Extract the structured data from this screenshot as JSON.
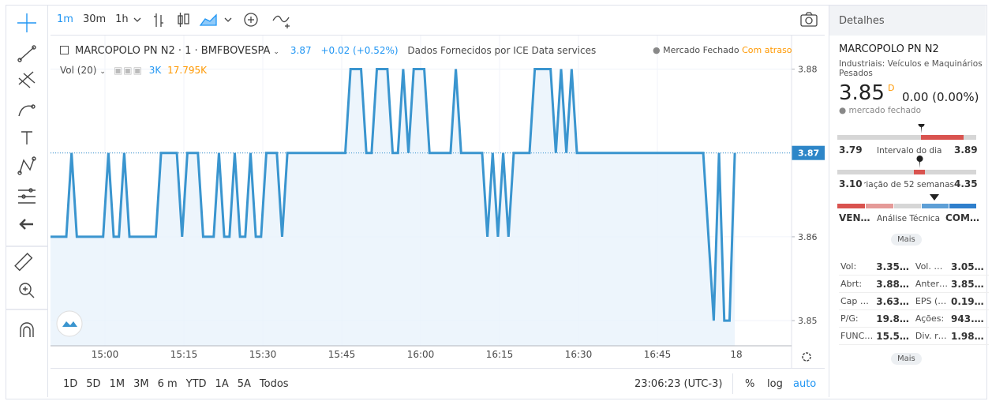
{
  "toolbar": {
    "intervals": [
      "1m",
      "30m",
      "1h"
    ]
  },
  "legend": {
    "symbol": "MARCOPOLO PN N2 · 1 · BMFBOVESPA",
    "price": "3.87",
    "change": "+0.02 (+0.52%)",
    "source": "Dados Fornecidos por ICE Data services",
    "status": "Mercado Fechado",
    "delay": "Com atraso",
    "volume_label": "Vol (20)",
    "volume_value": "3K",
    "volume_average": "17.795K"
  },
  "chart": {
    "type": "line",
    "color": "#3a95cf",
    "values": [
      3.86,
      3.86,
      3.86,
      3.86,
      3.87,
      3.86,
      3.86,
      3.86,
      3.86,
      3.86,
      3.86,
      3.87,
      3.86,
      3.86,
      3.87,
      3.86,
      3.86,
      3.86,
      3.86,
      3.86,
      3.86,
      3.87,
      3.87,
      3.87,
      3.87,
      3.86,
      3.87,
      3.87,
      3.87,
      3.86,
      3.86,
      3.86,
      3.87,
      3.86,
      3.86,
      3.87,
      3.86,
      3.86,
      3.87,
      3.86,
      3.86,
      3.87,
      3.87,
      3.87,
      3.86,
      3.87,
      3.87,
      3.87,
      3.87,
      3.87,
      3.87,
      3.87,
      3.87,
      3.87,
      3.87,
      3.87,
      3.87,
      3.88,
      3.88,
      3.88,
      3.87,
      3.87,
      3.88,
      3.88,
      3.88,
      3.87,
      3.87,
      3.88,
      3.87,
      3.88,
      3.88,
      3.88,
      3.87,
      3.87,
      3.87,
      3.87,
      3.87,
      3.88,
      3.87,
      3.87,
      3.87,
      3.87,
      3.87,
      3.86,
      3.87,
      3.86,
      3.87,
      3.86,
      3.87,
      3.87,
      3.87,
      3.87,
      3.88,
      3.88,
      3.88,
      3.88,
      3.87,
      3.88,
      3.87,
      3.88,
      3.87,
      3.87,
      3.87,
      3.87,
      3.87,
      3.87,
      3.87,
      3.87,
      3.87,
      3.87,
      3.87,
      3.87,
      3.87,
      3.87,
      3.87,
      3.87,
      3.87,
      3.87,
      3.87,
      3.87,
      3.87,
      3.87,
      3.87,
      3.87,
      3.87,
      3.86,
      3.85,
      3.87,
      3.85,
      3.85,
      3.87
    ],
    "ylim": [
      3.847,
      3.884
    ],
    "yticks": [
      3.85,
      3.86,
      3.87,
      3.88
    ],
    "xtick_labels": [
      "15:00",
      "15:15",
      "15:30",
      "15:45",
      "16:00",
      "16:15",
      "16:30",
      "16:45",
      "18"
    ],
    "last_price": 3.87,
    "grid": true
  },
  "bottom_bar": {
    "ranges": [
      "1D",
      "5D",
      "1M",
      "3M",
      "6 m",
      "YTD",
      "1A",
      "5A",
      "Todos"
    ],
    "clock": "23:06:23 (UTC-3)",
    "percent": "%",
    "log": "log",
    "auto": "auto"
  },
  "details": {
    "header": "Detalhes",
    "symbol": "MARCOPOLO PN N2",
    "sector": "Industriais: Veículos e Maquinários Pesados",
    "price": "3.85",
    "price_flag": "D",
    "change": "0.00 (0.00%)",
    "market_status": "mercado fechado",
    "day_range": {
      "low": "3.79",
      "label": "Intervalo do dia",
      "high": "3.89"
    },
    "year_range": {
      "low": "3.10",
      "label": "Variação de 52 semanas",
      "high": "4.35"
    },
    "technical": {
      "sell": "VEN…",
      "label": "Análise Técnica",
      "buy": "COM…"
    },
    "more_1": "Mais",
    "stats": [
      [
        "Vol:",
        "3.35…",
        "Vol. …",
        "3.05…"
      ],
      [
        "Abrt:",
        "3.88…",
        "Anter…",
        "3.85…"
      ],
      [
        "Cap …",
        "3.63…",
        "EPS (…",
        "0.19…"
      ],
      [
        "P/G:",
        "19.8…",
        "Ações:",
        "943.…"
      ],
      [
        "FUNC…",
        "15.5…",
        "Div. r…",
        "1.98…"
      ]
    ],
    "more_2": "Mais"
  }
}
